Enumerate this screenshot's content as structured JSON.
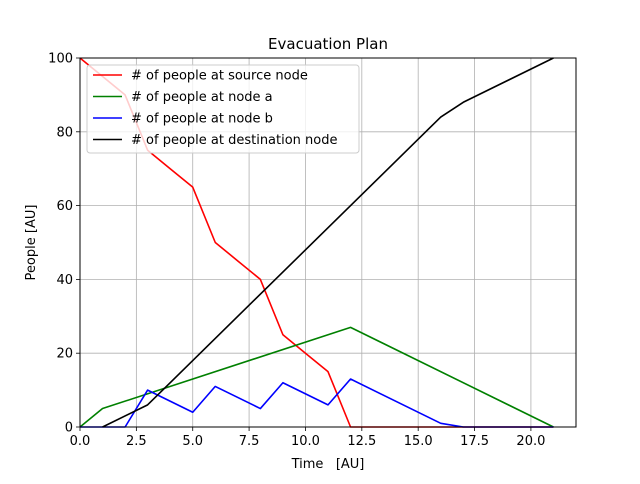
{
  "chart_data": {
    "type": "line",
    "title": "Evacuation Plan",
    "xlabel": "Time   [AU]",
    "ylabel": "People [AU]",
    "xlim": [
      0,
      22
    ],
    "ylim": [
      0,
      100
    ],
    "xticks": [
      0,
      2.5,
      5,
      7.5,
      10,
      12.5,
      15,
      17.5,
      20
    ],
    "xtick_labels": [
      "0.0",
      "2.5",
      "5.0",
      "7.5",
      "10.0",
      "12.5",
      "15.0",
      "17.5",
      "20.0"
    ],
    "yticks": [
      0,
      20,
      40,
      60,
      80,
      100
    ],
    "ytick_labels": [
      "0",
      "20",
      "40",
      "60",
      "80",
      "100"
    ],
    "grid": true,
    "legend": "top-left",
    "series": [
      {
        "name": "# of people at source node",
        "color": "#ff0000",
        "x": [
          0,
          2,
          3,
          4,
          5,
          6,
          7,
          8,
          9,
          10,
          11,
          12,
          21
        ],
        "y": [
          100,
          90,
          75,
          70,
          65,
          50,
          45,
          40,
          25,
          20,
          15,
          0,
          0
        ]
      },
      {
        "name": "# of people at node a",
        "color": "#008000",
        "x": [
          0,
          1,
          12,
          21
        ],
        "y": [
          0,
          5,
          27,
          0
        ]
      },
      {
        "name": "# of people at node b",
        "color": "#0000ff",
        "x": [
          0,
          2,
          3,
          5,
          6,
          8,
          9,
          11,
          12,
          16,
          17,
          21
        ],
        "y": [
          0,
          0,
          10,
          4,
          11,
          5,
          12,
          6,
          13,
          1,
          0,
          0
        ]
      },
      {
        "name": "# of people at destination node",
        "color": "#000000",
        "x": [
          1,
          3,
          16,
          17,
          21
        ],
        "y": [
          0,
          6,
          84,
          88,
          100
        ]
      }
    ]
  }
}
